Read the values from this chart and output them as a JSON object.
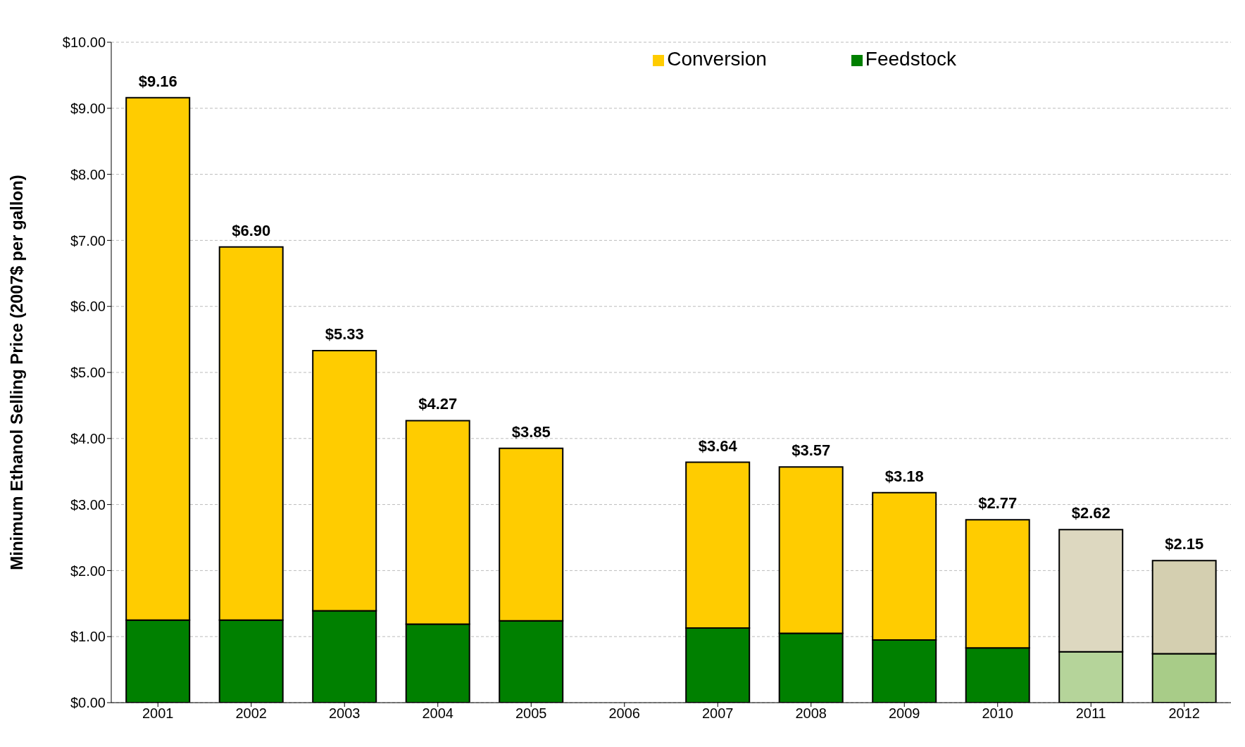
{
  "chart_data": {
    "type": "bar",
    "stacked": true,
    "ylabel": "Minimum Ethanol Selling Price (2007$ per gallon)",
    "categories": [
      "2001",
      "2002",
      "2003",
      "2004",
      "2005",
      "2006",
      "2007",
      "2008",
      "2009",
      "2010",
      "2011",
      "2012"
    ],
    "series": [
      {
        "name": "Feedstock",
        "color": "#008000",
        "colors": [
          "#008000",
          "#008000",
          "#008000",
          "#008000",
          "#008000",
          "#008000",
          "#008000",
          "#008000",
          "#008000",
          "#008000",
          "#b5d49a",
          "#a8cc88"
        ],
        "values": [
          1.25,
          1.25,
          1.39,
          1.19,
          1.24,
          null,
          1.13,
          1.05,
          0.95,
          0.83,
          0.77,
          0.74
        ]
      },
      {
        "name": "Conversion",
        "color": "#ffcc00",
        "colors": [
          "#ffcc00",
          "#ffcc00",
          "#ffcc00",
          "#ffcc00",
          "#ffcc00",
          "#ffcc00",
          "#ffcc00",
          "#ffcc00",
          "#ffcc00",
          "#ffcc00",
          "#ddd8c0",
          "#d4cfb0"
        ],
        "values": [
          7.91,
          5.65,
          3.94,
          3.08,
          2.61,
          null,
          2.51,
          2.52,
          2.23,
          1.94,
          1.85,
          1.41
        ]
      }
    ],
    "totals": [
      "$9.16",
      "$6.90",
      "$5.33",
      "$4.27",
      "$3.85",
      null,
      "$3.64",
      "$3.57",
      "$3.18",
      "$2.77",
      "$2.62",
      "$2.15"
    ],
    "ylim": [
      0,
      10
    ],
    "yticks": [
      {
        "value": 0,
        "label": "$0.00"
      },
      {
        "value": 1,
        "label": "$1.00"
      },
      {
        "value": 2,
        "label": "$2.00"
      },
      {
        "value": 3,
        "label": "$3.00"
      },
      {
        "value": 4,
        "label": "$4.00"
      },
      {
        "value": 5,
        "label": "$5.00"
      },
      {
        "value": 6,
        "label": "$6.00"
      },
      {
        "value": 7,
        "label": "$7.00"
      },
      {
        "value": 8,
        "label": "$8.00"
      },
      {
        "value": 9,
        "label": "$9.00"
      },
      {
        "value": 10,
        "label": "$10.00"
      }
    ],
    "grid": "y",
    "legend": "top right"
  }
}
